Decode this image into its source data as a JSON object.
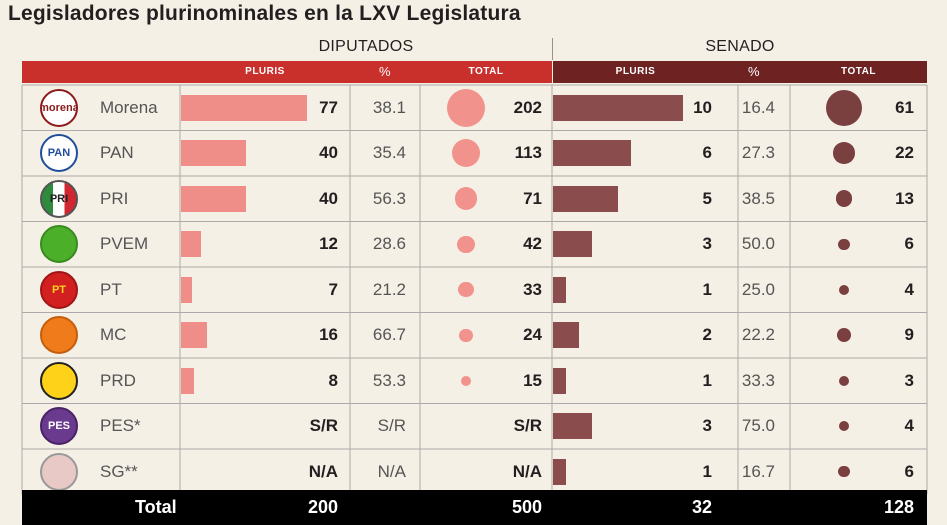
{
  "title": "Legisladores plurinominales en la LXV Legislatura",
  "groups": {
    "diputados": "DIPUTADOS",
    "senado": "SENADO"
  },
  "headers": {
    "pluris": "PLURIS",
    "pct": "%",
    "total": "TOTAL"
  },
  "colors": {
    "dip_header": "#c9302c",
    "sen_header": "#6e2322",
    "dip_bar": "#ef8e89",
    "dip_circle": "#f2928c",
    "sen_bar": "#8a4c4c",
    "sen_circle": "#7a3f3f",
    "grid": "#b0a8a8"
  },
  "chart_data": {
    "type": "table",
    "title": "Legisladores plurinominales en la LXV Legislatura",
    "rows": [
      {
        "party": "Morena",
        "logo_text": "morena",
        "dip_pluris": "77",
        "dip_pluris_value": 77,
        "dip_pct": "38.1",
        "dip_total": "202",
        "dip_total_value": 202,
        "sen_pluris": "10",
        "sen_pluris_value": 10,
        "sen_pct": "16.4",
        "sen_total": "61",
        "sen_total_value": 61
      },
      {
        "party": "PAN",
        "logo_text": "PAN",
        "dip_pluris": "40",
        "dip_pluris_value": 40,
        "dip_pct": "35.4",
        "dip_total": "113",
        "dip_total_value": 113,
        "sen_pluris": "6",
        "sen_pluris_value": 6,
        "sen_pct": "27.3",
        "sen_total": "22",
        "sen_total_value": 22
      },
      {
        "party": "PRI",
        "logo_text": "PRI",
        "dip_pluris": "40",
        "dip_pluris_value": 40,
        "dip_pct": "56.3",
        "dip_total": "71",
        "dip_total_value": 71,
        "sen_pluris": "5",
        "sen_pluris_value": 5,
        "sen_pct": "38.5",
        "sen_total": "13",
        "sen_total_value": 13
      },
      {
        "party": "PVEM",
        "logo_text": "",
        "dip_pluris": "12",
        "dip_pluris_value": 12,
        "dip_pct": "28.6",
        "dip_total": "42",
        "dip_total_value": 42,
        "sen_pluris": "3",
        "sen_pluris_value": 3,
        "sen_pct": "50.0",
        "sen_total": "6",
        "sen_total_value": 6
      },
      {
        "party": "PT",
        "logo_text": "PT",
        "dip_pluris": "7",
        "dip_pluris_value": 7,
        "dip_pct": "21.2",
        "dip_total": "33",
        "dip_total_value": 33,
        "sen_pluris": "1",
        "sen_pluris_value": 1,
        "sen_pct": "25.0",
        "sen_total": "4",
        "sen_total_value": 4
      },
      {
        "party": "MC",
        "logo_text": "",
        "dip_pluris": "16",
        "dip_pluris_value": 16,
        "dip_pct": "66.7",
        "dip_total": "24",
        "dip_total_value": 24,
        "sen_pluris": "2",
        "sen_pluris_value": 2,
        "sen_pct": "22.2",
        "sen_total": "9",
        "sen_total_value": 9
      },
      {
        "party": "PRD",
        "logo_text": "",
        "dip_pluris": "8",
        "dip_pluris_value": 8,
        "dip_pct": "53.3",
        "dip_total": "15",
        "dip_total_value": 15,
        "sen_pluris": "1",
        "sen_pluris_value": 1,
        "sen_pct": "33.3",
        "sen_total": "3",
        "sen_total_value": 3
      },
      {
        "party": "PES*",
        "logo_text": "PES",
        "dip_pluris": "S/R",
        "dip_pluris_value": null,
        "dip_pct": "S/R",
        "dip_total": "S/R",
        "dip_total_value": null,
        "sen_pluris": "3",
        "sen_pluris_value": 3,
        "sen_pct": "75.0",
        "sen_total": "4",
        "sen_total_value": 4
      },
      {
        "party": "SG**",
        "logo_text": "",
        "dip_pluris": "N/A",
        "dip_pluris_value": null,
        "dip_pct": "N/A",
        "dip_total": "N/A",
        "dip_total_value": null,
        "sen_pluris": "1",
        "sen_pluris_value": 1,
        "sen_pct": "16.7",
        "sen_total": "6",
        "sen_total_value": 6
      }
    ],
    "totals": {
      "label": "Total",
      "dip_pluris": "200",
      "dip_total": "500",
      "sen_pluris": "32",
      "sen_total": "128"
    }
  }
}
